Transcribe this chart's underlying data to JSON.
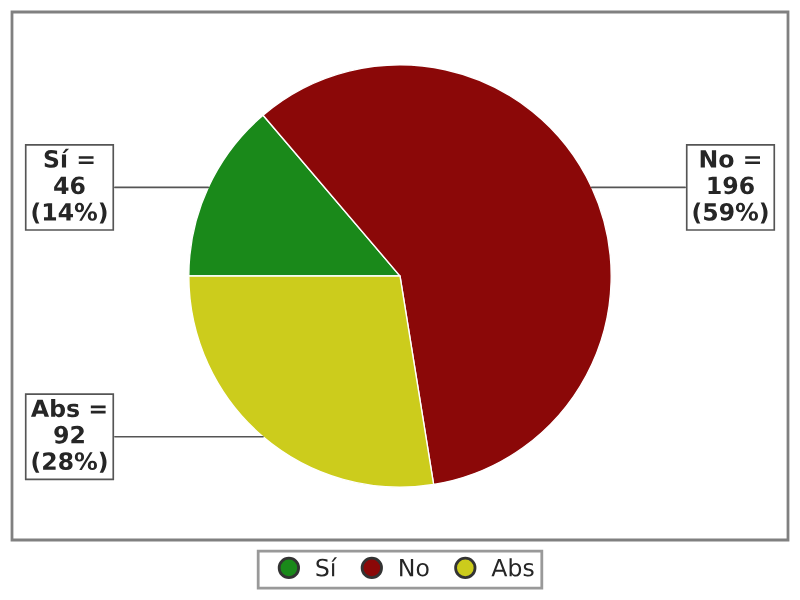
{
  "chart_data": {
    "type": "pie",
    "categories": [
      "Sí",
      "No",
      "Abs"
    ],
    "values": [
      46,
      196,
      92
    ],
    "colors": [
      "#1a891a",
      "#8b0808",
      "#cccc1c"
    ],
    "value_labels": [
      "Sí =\n46\n(14%)",
      "No =\n196\n(59%)",
      "Abs =\n92\n(28%)"
    ],
    "legend": "bottom"
  }
}
